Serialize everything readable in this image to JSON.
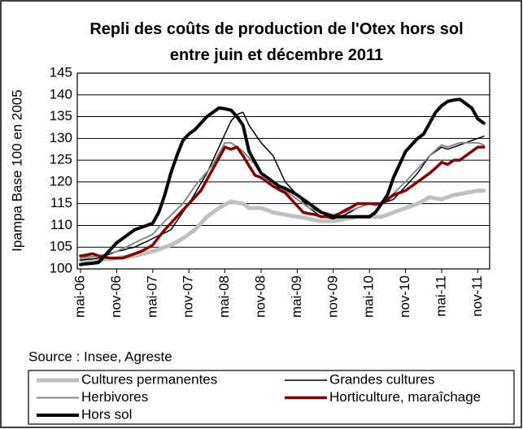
{
  "chart_data": {
    "type": "line",
    "title": "Repli des coûts de production de l'Otex hors sol entre juin et décembre 2011",
    "y_label": "Ipampa Base 100 en  2005",
    "source": "Source : Insee, Agreste",
    "categories": [
      "mai-06",
      null,
      null,
      null,
      null,
      null,
      "nov-06",
      null,
      null,
      null,
      null,
      null,
      "mai-07",
      null,
      null,
      null,
      null,
      null,
      "nov-07",
      null,
      null,
      null,
      null,
      null,
      "mai-08",
      null,
      null,
      null,
      null,
      null,
      "nov-08",
      null,
      null,
      null,
      null,
      null,
      "mai-09",
      null,
      null,
      null,
      null,
      null,
      "nov-09",
      null,
      null,
      null,
      null,
      null,
      "mai-10",
      null,
      null,
      null,
      null,
      null,
      "nov-10",
      null,
      null,
      null,
      null,
      null,
      "mai-11",
      null,
      null,
      null,
      null,
      null,
      "nov-11",
      null
    ],
    "ylim": [
      100,
      145
    ],
    "yticks": [
      100,
      105,
      110,
      115,
      120,
      125,
      130,
      135,
      140,
      145
    ],
    "grid": true,
    "legend": "bottom",
    "series": [
      {
        "name": "Cultures permanentes",
        "color": "#c0c0c0",
        "line_width": 5,
        "values": [
          102,
          102,
          102,
          102,
          102.2,
          102.3,
          102.5,
          102.7,
          102.8,
          103,
          103.3,
          103.7,
          104,
          104.5,
          105,
          105.5,
          106.2,
          107,
          108,
          109,
          110.5,
          112,
          113,
          114,
          114.8,
          115.5,
          115.2,
          115,
          114,
          114,
          114,
          113.5,
          113,
          112.7,
          112.5,
          112.2,
          112,
          111.8,
          111.5,
          111.2,
          111,
          111,
          111,
          111.2,
          111.5,
          111.7,
          112,
          112,
          112,
          112,
          112,
          112.5,
          113,
          113.5,
          114,
          114.5,
          115,
          115.7,
          116.5,
          116.2,
          116,
          116.5,
          117,
          117.2,
          117.5,
          117.7,
          118,
          118
        ]
      },
      {
        "name": "Grandes cultures",
        "color": "#000000",
        "line_width": 1.5,
        "values": [
          102,
          102.2,
          102.3,
          102.5,
          103,
          103.5,
          104,
          104.3,
          104.7,
          105,
          105.7,
          106.3,
          107,
          107.7,
          108.3,
          109,
          111,
          113,
          115,
          117.3,
          119.7,
          122,
          125,
          128,
          131,
          134,
          135.5,
          136,
          133,
          131,
          129,
          127.5,
          126,
          123,
          120,
          118.5,
          117,
          115.5,
          114,
          113,
          112,
          111.8,
          111.5,
          112,
          112.5,
          113.2,
          114,
          114.5,
          115,
          115,
          115,
          115.5,
          116,
          117.5,
          119,
          120.5,
          122,
          124,
          126,
          127,
          128,
          127.5,
          128,
          128.5,
          129,
          129.5,
          130,
          130.5
        ]
      },
      {
        "name": "Herbivores",
        "color": "#888888",
        "line_width": 2,
        "values": [
          102.5,
          102.7,
          102.8,
          103,
          103.3,
          103.7,
          104,
          104.7,
          105.3,
          106,
          106.7,
          107.3,
          108,
          109.5,
          111,
          112.3,
          113.7,
          115,
          117,
          119,
          120.7,
          122.3,
          124,
          126.5,
          129,
          129,
          128,
          127,
          125.5,
          124,
          122,
          121,
          120,
          119,
          118,
          117,
          116,
          115,
          114,
          113.5,
          113,
          112.8,
          112.5,
          112.8,
          113,
          113.5,
          114,
          114.5,
          115,
          114.5,
          115.2,
          116,
          117.3,
          118.7,
          120,
          121.5,
          123,
          124.5,
          126,
          127.3,
          128.5,
          128,
          128.5,
          129,
          129,
          129,
          129,
          128.5
        ]
      },
      {
        "name": "Horticulture, maraîchage",
        "color": "#7f0000",
        "line_width": 3.5,
        "values": [
          103,
          103.2,
          103.5,
          103,
          102.7,
          102.5,
          102.5,
          102.5,
          103,
          103.5,
          104,
          104.7,
          105.5,
          107.3,
          109,
          110.5,
          112,
          113.5,
          115,
          116.5,
          118,
          120.5,
          123,
          125.5,
          128,
          127.5,
          128,
          126,
          123.7,
          121.5,
          121,
          120,
          119,
          118.2,
          117.5,
          116,
          114.5,
          113,
          112.7,
          112.5,
          112,
          112,
          112,
          112.7,
          113.5,
          114.2,
          115,
          115,
          115,
          115,
          115,
          116,
          117,
          117.5,
          118,
          119,
          120,
          121,
          122,
          123.2,
          124.5,
          124,
          125,
          125,
          126,
          127,
          128,
          128
        ]
      },
      {
        "name": "Hors sol",
        "color": "#000000",
        "line_width": 4,
        "values": [
          101,
          101.2,
          101.3,
          101.5,
          103,
          104.5,
          106,
          107,
          108,
          109,
          109.5,
          110,
          110.5,
          113,
          117,
          122,
          126,
          129.5,
          131,
          132,
          133.5,
          135,
          136,
          137,
          136.8,
          136.5,
          135,
          133,
          127,
          124.5,
          122,
          121,
          120,
          119,
          118.5,
          117.8,
          117,
          116,
          115,
          114,
          113,
          112.5,
          112,
          112,
          112,
          112,
          112,
          112,
          112,
          113,
          115,
          117,
          121,
          124,
          127,
          128.5,
          130,
          131,
          133.5,
          136,
          137.5,
          138.5,
          138.8,
          139,
          138,
          137,
          134.5,
          133.5
        ]
      }
    ]
  }
}
